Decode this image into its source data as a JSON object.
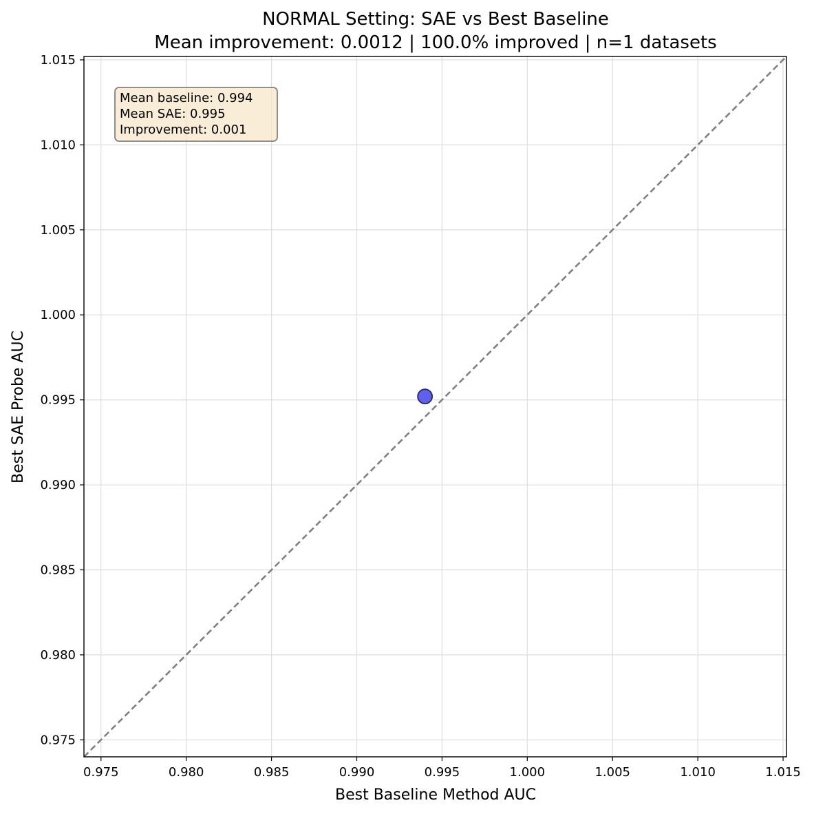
{
  "chart_data": {
    "type": "scatter",
    "title": "NORMAL Setting: SAE vs Best Baseline",
    "subtitle": "Mean improvement: 0.0012 | 100.0% improved | n=1 datasets",
    "xlabel": "Best Baseline Method AUC",
    "ylabel": "Best SAE Probe AUC",
    "xlim": [
      0.974,
      1.0152
    ],
    "ylim": [
      0.974,
      1.0152
    ],
    "xticks": [
      "0.975",
      "0.980",
      "0.985",
      "0.990",
      "0.995",
      "1.000",
      "1.005",
      "1.010",
      "1.015"
    ],
    "yticks": [
      "0.975",
      "0.980",
      "0.985",
      "0.990",
      "0.995",
      "1.000",
      "1.005",
      "1.010",
      "1.015"
    ],
    "grid": true,
    "reference_line": "y = x",
    "points": [
      {
        "x": 0.994,
        "y": 0.9952
      }
    ],
    "point_color": "#6060f0",
    "stats_box": [
      "Mean baseline: 0.994",
      "Mean SAE: 0.995",
      "Improvement: 0.001"
    ]
  }
}
